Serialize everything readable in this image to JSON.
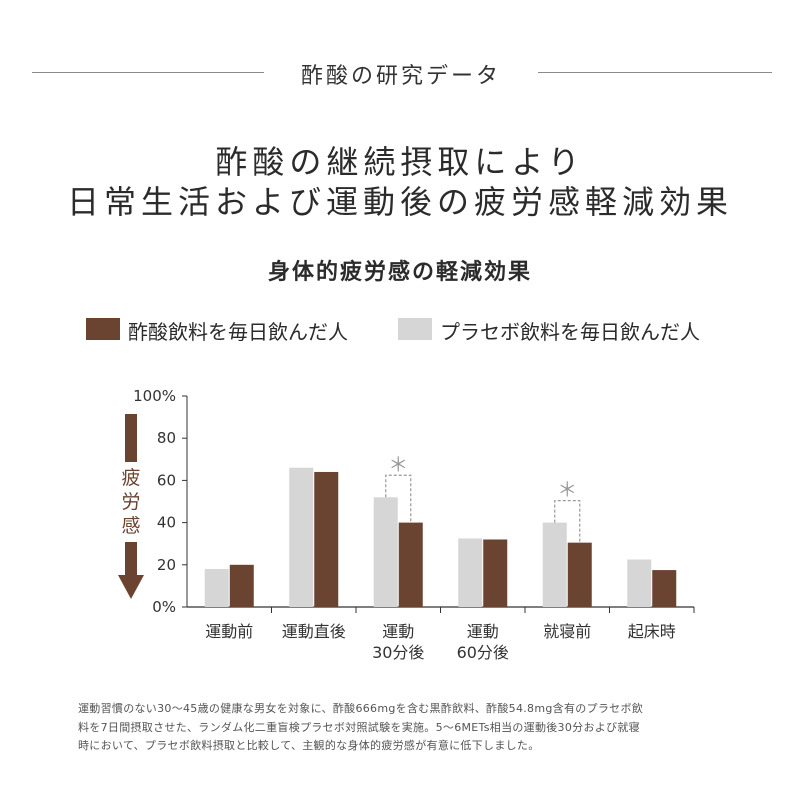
{
  "header": {
    "section_title": "酢酸の研究データ"
  },
  "headline": {
    "line1": "酢酸の継続摂取により",
    "line2": "日常生活および運動後の疲労感軽減効果"
  },
  "colors": {
    "vinegar": "#6b4331",
    "placebo": "#d6d6d6",
    "arrow": "#6b4331",
    "axis": "#333333",
    "asterisk": "#999999"
  },
  "chart_data": {
    "type": "bar",
    "title": "身体的疲労感の軽減効果",
    "ylabel": "疲労感",
    "ylim": [
      0,
      100
    ],
    "yticks": [
      "100%",
      "80",
      "60",
      "40",
      "20",
      "0%"
    ],
    "ytick_values": [
      100,
      80,
      60,
      40,
      20,
      0
    ],
    "categories": [
      [
        "運動前"
      ],
      [
        "運動直後"
      ],
      [
        "運動",
        "30分後"
      ],
      [
        "運動",
        "60分後"
      ],
      [
        "就寝前"
      ],
      [
        "起床時"
      ]
    ],
    "series": [
      {
        "name": "プラセボ飲料を毎日飲んだ人",
        "color": "#d6d6d6",
        "values": [
          18,
          66,
          52,
          32.5,
          40,
          22.5
        ]
      },
      {
        "name": "酢酸飲料を毎日飲んだ人",
        "color": "#6b4331",
        "values": [
          20,
          64,
          40,
          32,
          30.5,
          17.5
        ]
      }
    ],
    "significance": [
      {
        "category_index": 2,
        "symbol": "＊"
      },
      {
        "category_index": 4,
        "symbol": "＊"
      }
    ],
    "legend_order": [
      1,
      0
    ],
    "legend_position": "top",
    "grid": false
  },
  "footnote": {
    "line1": "運動習慣のない30～45歳の健康な男女を対象に、酢酸666mgを含む黒酢飲料、酢酸54.8mg含有のプラセボ飲",
    "line2": "料を7日間摂取させた、ランダム化二重盲検プラセボ対照試験を実施。5～6METs相当の運動後30分および就寝",
    "line3": "時において、プラセボ飲料摂取と比較して、主観的な身体的疲労感が有意に低下しました。"
  }
}
